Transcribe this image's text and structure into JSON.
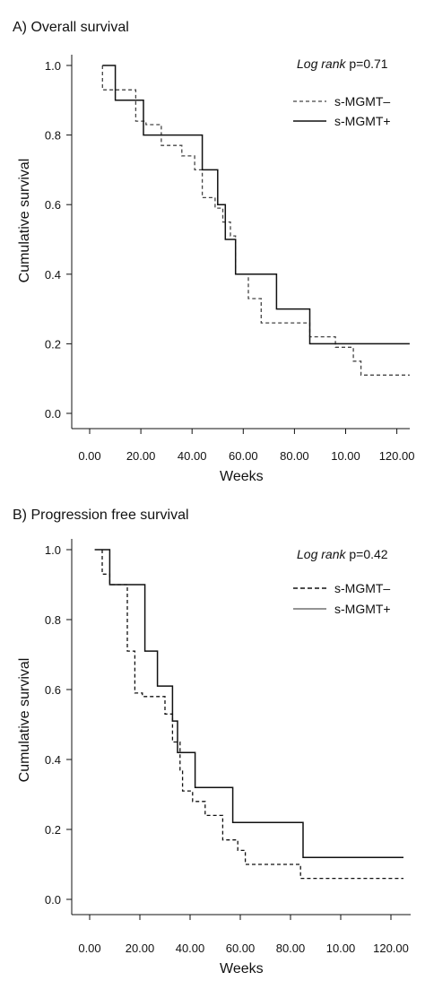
{
  "chart_data": [
    {
      "type": "line",
      "title": "A) Overall survival",
      "xlabel": "Weeks",
      "ylabel": "Cumulative survival",
      "annotation": {
        "label": "Log rank",
        "value": "p=0.71"
      },
      "xlim": [
        0,
        125
      ],
      "ylim": [
        0,
        1.0
      ],
      "x_ticks": [
        "0.00",
        "20.00",
        "40.00",
        "60.00",
        "80.00",
        "10.00",
        "120.00"
      ],
      "y_ticks": [
        "0.0",
        "0.2",
        "0.4",
        "0.6",
        "0.8",
        "1.0"
      ],
      "legend_position": "top-right",
      "series": [
        {
          "name": "s-MGMT–",
          "style": "dashed",
          "color": "#444444",
          "step_points": [
            [
              5,
              1.0
            ],
            [
              5,
              0.93
            ],
            [
              10,
              0.93
            ],
            [
              10,
              0.93
            ],
            [
              18,
              0.93
            ],
            [
              18,
              0.84
            ],
            [
              22,
              0.84
            ],
            [
              22,
              0.83
            ],
            [
              28,
              0.83
            ],
            [
              28,
              0.77
            ],
            [
              36,
              0.77
            ],
            [
              36,
              0.74
            ],
            [
              41,
              0.74
            ],
            [
              41,
              0.7
            ],
            [
              44,
              0.7
            ],
            [
              44,
              0.62
            ],
            [
              49,
              0.62
            ],
            [
              49,
              0.59
            ],
            [
              52,
              0.59
            ],
            [
              52,
              0.55
            ],
            [
              55,
              0.55
            ],
            [
              55,
              0.51
            ],
            [
              57,
              0.51
            ],
            [
              57,
              0.4
            ],
            [
              62,
              0.4
            ],
            [
              62,
              0.33
            ],
            [
              67,
              0.33
            ],
            [
              67,
              0.26
            ],
            [
              86,
              0.26
            ],
            [
              86,
              0.22
            ],
            [
              96,
              0.22
            ],
            [
              96,
              0.19
            ],
            [
              103,
              0.19
            ],
            [
              103,
              0.15
            ],
            [
              106,
              0.15
            ],
            [
              106,
              0.11
            ],
            [
              125,
              0.11
            ]
          ]
        },
        {
          "name": "s-MGMT+",
          "style": "solid",
          "color": "#111111",
          "step_points": [
            [
              5,
              1.0
            ],
            [
              10,
              1.0
            ],
            [
              10,
              0.9
            ],
            [
              21,
              0.9
            ],
            [
              21,
              0.8
            ],
            [
              44,
              0.8
            ],
            [
              44,
              0.7
            ],
            [
              50,
              0.7
            ],
            [
              50,
              0.6
            ],
            [
              53,
              0.6
            ],
            [
              53,
              0.5
            ],
            [
              57,
              0.5
            ],
            [
              57,
              0.4
            ],
            [
              73,
              0.4
            ],
            [
              73,
              0.3
            ],
            [
              86,
              0.3
            ],
            [
              86,
              0.2
            ],
            [
              125,
              0.2
            ]
          ]
        }
      ]
    },
    {
      "type": "line",
      "title": "B) Progression free survival",
      "xlabel": "Weeks",
      "ylabel": "Cumulative survival",
      "annotation": {
        "label": "Log rank",
        "value": "p=0.42"
      },
      "xlim": [
        0,
        125
      ],
      "ylim": [
        0,
        1.0
      ],
      "x_ticks": [
        "0.00",
        "20.00",
        "40.00",
        "60.00",
        "80.00",
        "10.00",
        "120.00"
      ],
      "y_ticks": [
        "0.0",
        "0.2",
        "0.4",
        "0.6",
        "0.8",
        "1.0"
      ],
      "legend_position": "top-right",
      "series": [
        {
          "name": "s-MGMT–",
          "style": "dashed",
          "color": "#111111",
          "step_points": [
            [
              5,
              1.0
            ],
            [
              5,
              0.93
            ],
            [
              8,
              0.93
            ],
            [
              8,
              0.9
            ],
            [
              15,
              0.9
            ],
            [
              15,
              0.71
            ],
            [
              18,
              0.71
            ],
            [
              18,
              0.59
            ],
            [
              21,
              0.59
            ],
            [
              21,
              0.58
            ],
            [
              30,
              0.58
            ],
            [
              30,
              0.53
            ],
            [
              33,
              0.53
            ],
            [
              33,
              0.45
            ],
            [
              36,
              0.45
            ],
            [
              36,
              0.37
            ],
            [
              37,
              0.37
            ],
            [
              37,
              0.31
            ],
            [
              41,
              0.31
            ],
            [
              41,
              0.28
            ],
            [
              46,
              0.28
            ],
            [
              46,
              0.24
            ],
            [
              53,
              0.24
            ],
            [
              53,
              0.17
            ],
            [
              59,
              0.17
            ],
            [
              59,
              0.14
            ],
            [
              62,
              0.14
            ],
            [
              62,
              0.1
            ],
            [
              84,
              0.1
            ],
            [
              84,
              0.06
            ],
            [
              125,
              0.06
            ]
          ]
        },
        {
          "name": "s-MGMT+",
          "style": "solid",
          "color": "#111111",
          "step_points": [
            [
              2,
              1.0
            ],
            [
              8,
              1.0
            ],
            [
              8,
              0.9
            ],
            [
              22,
              0.9
            ],
            [
              22,
              0.71
            ],
            [
              27,
              0.71
            ],
            [
              27,
              0.61
            ],
            [
              33,
              0.61
            ],
            [
              33,
              0.51
            ],
            [
              35,
              0.51
            ],
            [
              35,
              0.42
            ],
            [
              42,
              0.42
            ],
            [
              42,
              0.32
            ],
            [
              57,
              0.32
            ],
            [
              57,
              0.22
            ],
            [
              85,
              0.22
            ],
            [
              85,
              0.12
            ],
            [
              125,
              0.12
            ]
          ]
        }
      ]
    }
  ]
}
